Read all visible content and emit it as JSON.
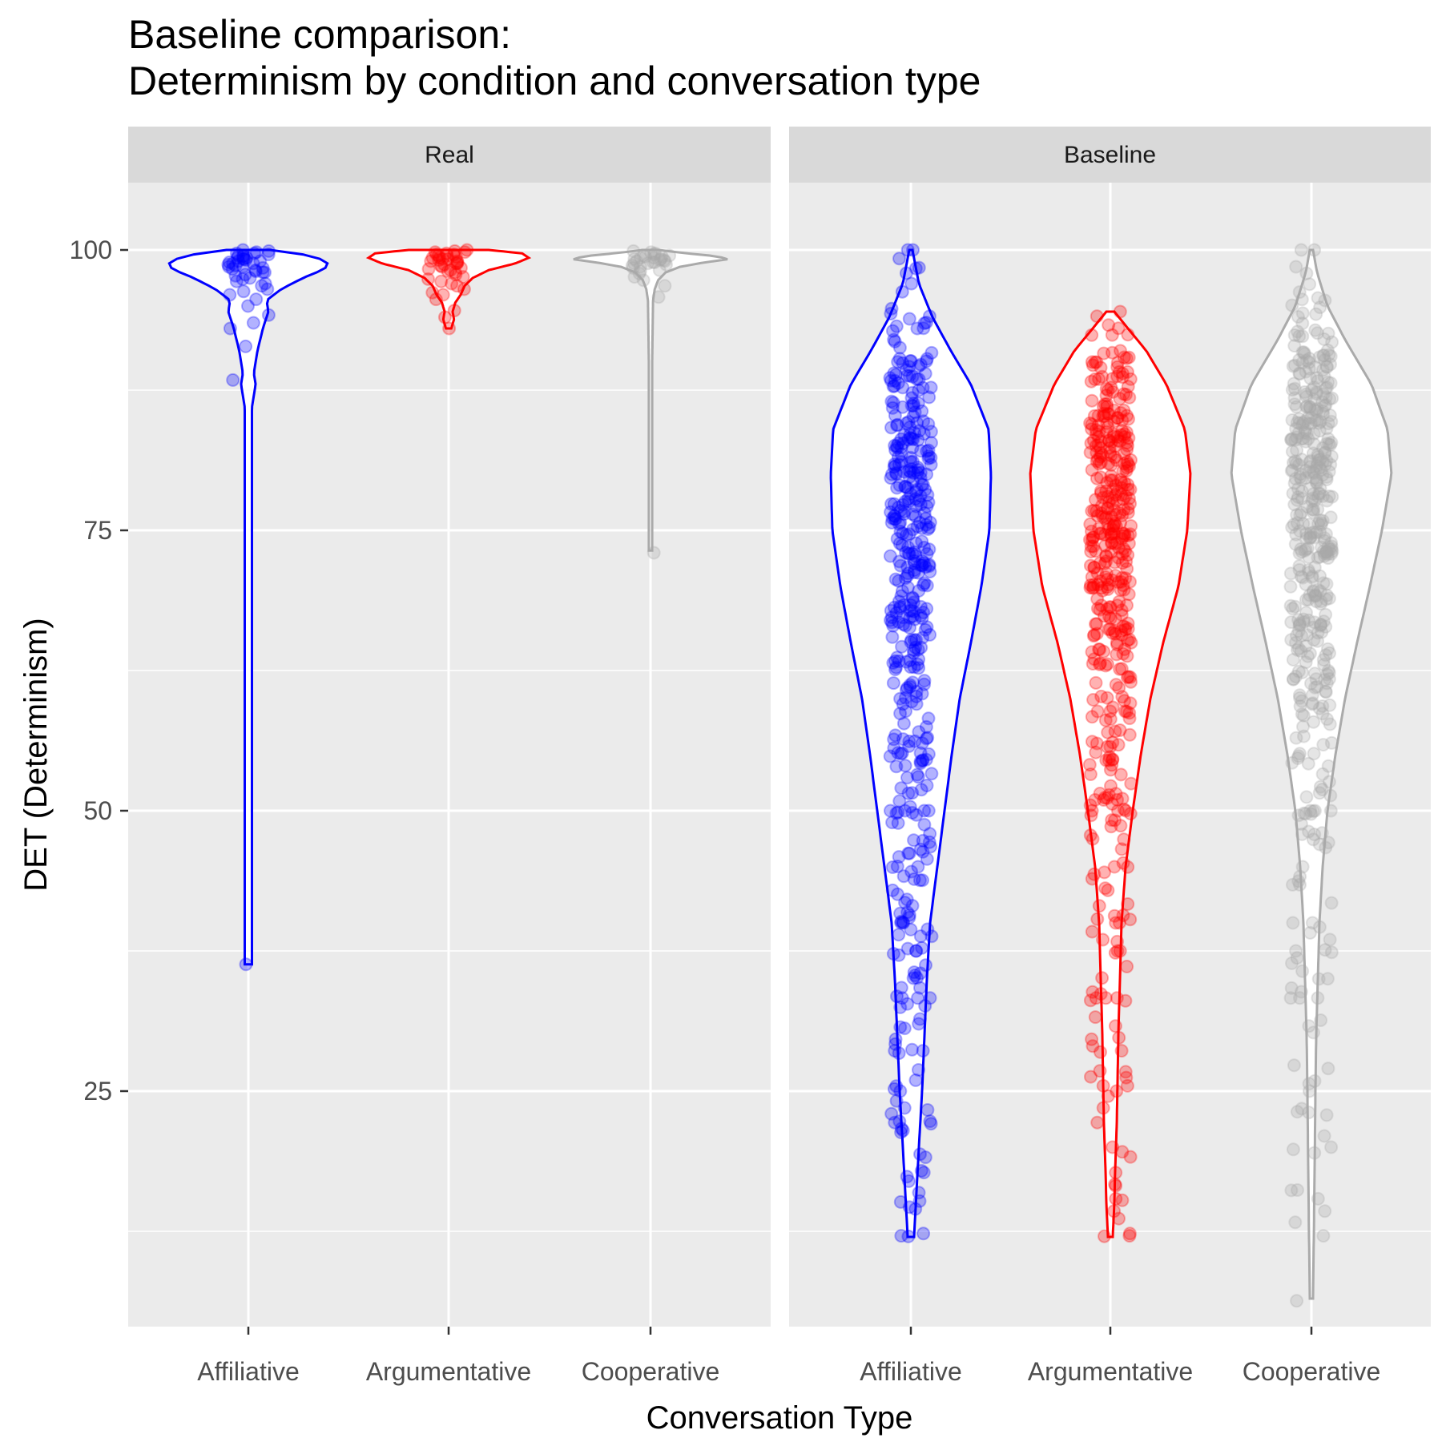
{
  "chart_data": {
    "type": "violin",
    "title": "Baseline comparison:",
    "subtitle": "Determinism by condition and conversation type",
    "xlabel": "Conversation Type",
    "ylabel": "DET (Determinism)",
    "ylim": [
      4,
      106
    ],
    "y_ticks": [
      25,
      50,
      75,
      100
    ],
    "grid": true,
    "legend": "none",
    "categories": [
      "Affiliative",
      "Argumentative",
      "Cooperative"
    ],
    "colors": {
      "Affiliative": "#0000ff",
      "Argumentative": "#ff0000",
      "Cooperative": "#aaaaaa"
    },
    "panels": [
      {
        "name": "Real",
        "series": [
          {
            "category": "Affiliative",
            "range": [
              36.3,
              100
            ],
            "density": [
              [
                36.3,
                0.02
              ],
              [
                50,
                0.02
              ],
              [
                70,
                0.02
              ],
              [
                86,
                0.02
              ],
              [
                88,
                0.04
              ],
              [
                89,
                0.03
              ],
              [
                91,
                0.05
              ],
              [
                93,
                0.08
              ],
              [
                94.5,
                0.11
              ],
              [
                95.5,
                0.1
              ],
              [
                96.5,
                0.18
              ],
              [
                97.5,
                0.3
              ],
              [
                98.3,
                0.42
              ],
              [
                99,
                0.44
              ],
              [
                99.6,
                0.3
              ],
              [
                100,
                0.12
              ]
            ],
            "points": [
              36.3,
              88.4,
              91.4,
              93.0,
              93.5,
              94.2,
              95.0,
              95.6,
              96.0,
              96.3,
              96.5,
              96.8,
              97.0,
              97.2,
              97.4,
              97.5,
              97.7,
              97.8,
              98.0,
              98.0,
              98.1,
              98.2,
              98.3,
              98.4,
              98.5,
              98.5,
              98.6,
              98.7,
              98.8,
              98.8,
              98.9,
              99.0,
              99.0,
              99.1,
              99.2,
              99.2,
              99.3,
              99.3,
              99.4,
              99.5,
              99.5,
              99.6,
              99.7,
              99.7,
              99.8,
              99.9,
              100
            ]
          },
          {
            "category": "Argumentative",
            "range": [
              93.0,
              100
            ],
            "density": [
              [
                93,
                0.02
              ],
              [
                93.8,
                0.04
              ],
              [
                94.5,
                0.03
              ],
              [
                95.3,
                0.05
              ],
              [
                96,
                0.09
              ],
              [
                96.8,
                0.12
              ],
              [
                97.5,
                0.18
              ],
              [
                98.2,
                0.3
              ],
              [
                98.8,
                0.5
              ],
              [
                99.3,
                0.6
              ],
              [
                99.7,
                0.55
              ],
              [
                100,
                0.3
              ]
            ],
            "points": [
              93.0,
              94.0,
              94.6,
              95.6,
              96.0,
              96.2,
              96.5,
              96.8,
              97.0,
              97.2,
              97.4,
              97.6,
              97.8,
              98.0,
              98.1,
              98.2,
              98.3,
              98.4,
              98.5,
              98.6,
              98.7,
              98.8,
              98.8,
              98.9,
              99.0,
              99.0,
              99.1,
              99.2,
              99.2,
              99.3,
              99.3,
              99.4,
              99.5,
              99.5,
              99.6,
              99.6,
              99.7,
              99.8,
              99.8,
              99.9,
              100
            ]
          },
          {
            "category": "Cooperative",
            "range": [
              73.2,
              100
            ],
            "density": [
              [
                73.2,
                0.02
              ],
              [
                80,
                0.02
              ],
              [
                90,
                0.02
              ],
              [
                95.5,
                0.03
              ],
              [
                96.5,
                0.05
              ],
              [
                97.3,
                0.09
              ],
              [
                98,
                0.18
              ],
              [
                98.5,
                0.35
              ],
              [
                98.9,
                0.65
              ],
              [
                99.2,
                0.95
              ],
              [
                99.5,
                0.7
              ],
              [
                99.8,
                0.3
              ],
              [
                100,
                0.1
              ]
            ],
            "points": [
              73.0,
              95.8,
              96.8,
              97.3,
              97.6,
              97.9,
              98.1,
              98.2,
              98.4,
              98.5,
              98.6,
              98.7,
              98.8,
              98.8,
              98.9,
              98.9,
              99.0,
              99.0,
              99.1,
              99.1,
              99.2,
              99.2,
              99.3,
              99.3,
              99.4,
              99.4,
              99.5,
              99.5,
              99.6,
              99.7,
              99.8,
              99.9
            ]
          }
        ]
      },
      {
        "name": "Baseline",
        "series": [
          {
            "category": "Affiliative",
            "range": [
              12.0,
              100
            ],
            "n_points": 420,
            "seed": 11,
            "density": [
              [
                12,
                0.04
              ],
              [
                16,
                0.07
              ],
              [
                20,
                0.1
              ],
              [
                25,
                0.14
              ],
              [
                30,
                0.17
              ],
              [
                35,
                0.2
              ],
              [
                40,
                0.24
              ],
              [
                45,
                0.33
              ],
              [
                50,
                0.42
              ],
              [
                55,
                0.51
              ],
              [
                60,
                0.61
              ],
              [
                65,
                0.75
              ],
              [
                70,
                0.88
              ],
              [
                75,
                0.98
              ],
              [
                80,
                1.0
              ],
              [
                84,
                0.97
              ],
              [
                88,
                0.75
              ],
              [
                91,
                0.5
              ],
              [
                94,
                0.27
              ],
              [
                97,
                0.1
              ],
              [
                100,
                0.02
              ]
            ],
            "points": [
              12.3,
              12.1,
              15.2,
              17.9,
              19.1,
              22.2,
              22.3,
              23.5,
              25.0,
              28.6,
              28.6,
              30.6,
              31.0,
              33.3,
              33.3,
              33.3,
              35.6,
              37.5,
              37.5,
              40.0,
              40.0,
              42.9,
              43.8,
              45.0,
              46.2,
              50.0,
              50.0,
              50.0,
              50.0,
              93.0,
              92.0,
              100,
              100
            ]
          },
          {
            "category": "Argumentative",
            "range": [
              12.0,
              94.5
            ],
            "n_points": 420,
            "seed": 23,
            "density": [
              [
                12,
                0.03
              ],
              [
                15,
                0.05
              ],
              [
                18,
                0.06
              ],
              [
                22,
                0.08
              ],
              [
                26,
                0.09
              ],
              [
                30,
                0.1
              ],
              [
                35,
                0.12
              ],
              [
                40,
                0.14
              ],
              [
                45,
                0.19
              ],
              [
                50,
                0.28
              ],
              [
                55,
                0.38
              ],
              [
                60,
                0.5
              ],
              [
                65,
                0.66
              ],
              [
                70,
                0.85
              ],
              [
                75,
                0.96
              ],
              [
                80,
                1.0
              ],
              [
                84,
                0.93
              ],
              [
                88,
                0.7
              ],
              [
                91,
                0.45
              ],
              [
                93,
                0.22
              ],
              [
                94.5,
                0.05
              ]
            ],
            "points": [
              12.1,
              12.3,
              14.3,
              15.4,
              16.7,
              20.0,
              22.2,
              23.5,
              25.0,
              26.8,
              28.6,
              30.8,
              31.6,
              33.3,
              33.3,
              33.3,
              37.5,
              37.5,
              38.5,
              40.0,
              40.0,
              42.9,
              45.0,
              50.0,
              50.0,
              50.0,
              94.5
            ]
          },
          {
            "category": "Cooperative",
            "range": [
              6.5,
              100
            ],
            "n_points": 420,
            "seed": 37,
            "density": [
              [
                6.5,
                0.02
              ],
              [
                12,
                0.03
              ],
              [
                18,
                0.04
              ],
              [
                25,
                0.05
              ],
              [
                30,
                0.06
              ],
              [
                35,
                0.08
              ],
              [
                40,
                0.1
              ],
              [
                45,
                0.14
              ],
              [
                50,
                0.2
              ],
              [
                55,
                0.3
              ],
              [
                60,
                0.42
              ],
              [
                65,
                0.57
              ],
              [
                70,
                0.73
              ],
              [
                75,
                0.88
              ],
              [
                80,
                1.0
              ],
              [
                84,
                0.95
              ],
              [
                88,
                0.75
              ],
              [
                92,
                0.42
              ],
              [
                95,
                0.2
              ],
              [
                98,
                0.07
              ],
              [
                100,
                0.02
              ]
            ],
            "points": [
              6.3,
              12.1,
              13.3,
              14.3,
              15.4,
              19.8,
              20.0,
              21.0,
              25.0,
              25.9,
              27.3,
              30.8,
              33.3,
              33.3,
              33.3,
              35.0,
              35.7,
              36.4,
              37.5,
              40.0,
              40.0,
              43.4,
              45.0,
              47.0,
              50.0,
              50.0,
              50.0,
              95.5,
              100,
              100
            ]
          }
        ]
      }
    ]
  }
}
